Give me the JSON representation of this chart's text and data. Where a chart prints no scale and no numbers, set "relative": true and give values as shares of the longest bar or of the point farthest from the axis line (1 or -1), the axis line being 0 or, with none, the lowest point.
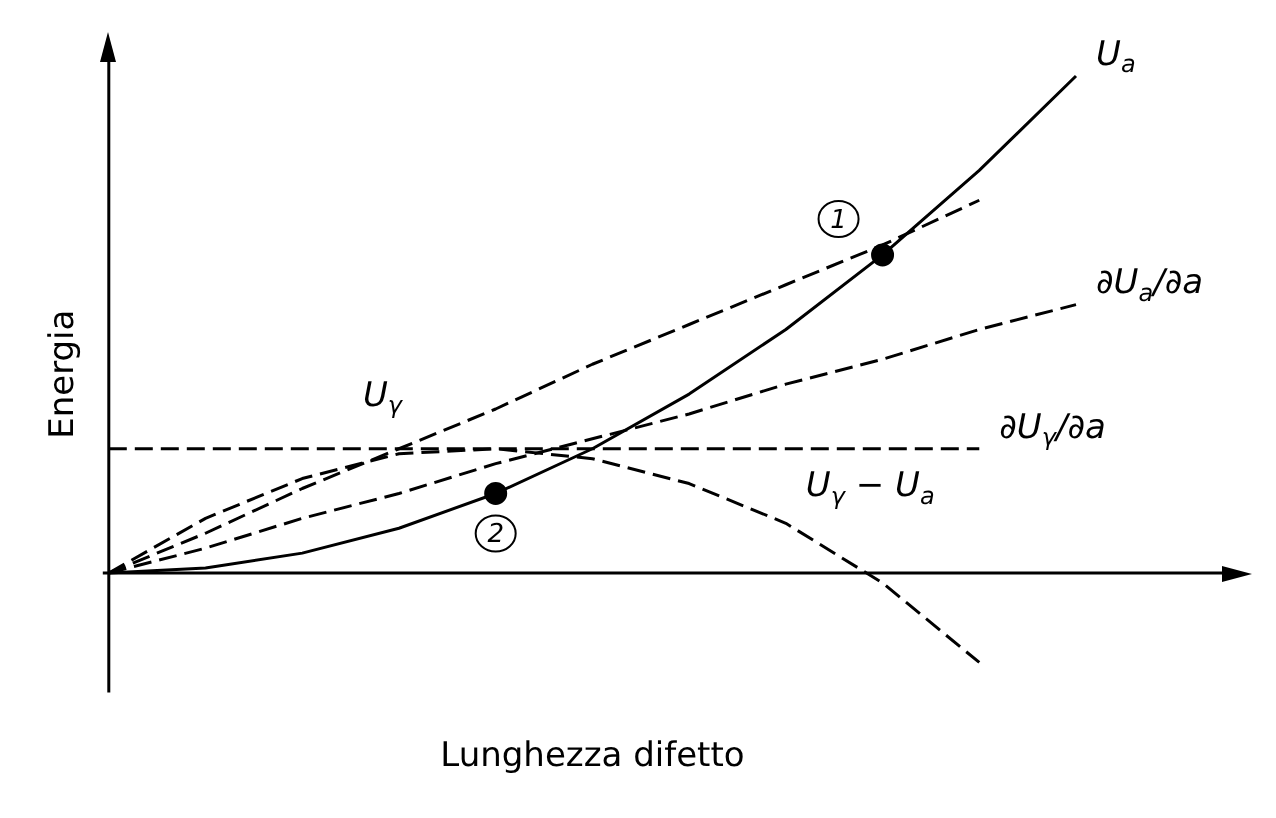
{
  "chart_data": {
    "type": "line",
    "relative": true,
    "xlabel": "Lunghezza difetto",
    "ylabel": "Energia",
    "legend": false,
    "grid": false,
    "marker": "none",
    "categories": [
      null,
      null,
      null,
      null,
      null,
      null,
      null,
      null,
      null,
      null,
      null
    ],
    "series": [
      {
        "name": "U$_{a}$",
        "color": "#000000",
        "line_style": "solid",
        "values": [
          0,
          0.01,
          0.04,
          0.09,
          0.16,
          0.25,
          0.36,
          0.49,
          0.64,
          0.81,
          1
        ]
      },
      {
        "name": "U$_{γ}$",
        "color": "#000000",
        "line_style": "dashed",
        "values": [
          0,
          0.08,
          0.17,
          0.25,
          0.33,
          0.42,
          0.5,
          0.58,
          0.66,
          0.75,
          null
        ]
      },
      {
        "name": "∂U$_{a}$/∂a",
        "color": "#000000",
        "line_style": "dashed",
        "values": [
          0,
          0.05,
          0.11,
          0.16,
          0.22,
          0.27,
          0.32,
          0.38,
          0.43,
          0.49,
          0.54
        ]
      },
      {
        "name": "∂U$_{γ}$/∂a",
        "color": "#000000",
        "line_style": "dashed",
        "values": [
          0.25,
          0.25,
          0.25,
          0.25,
          0.25,
          0.25,
          0.25,
          0.25,
          0.25,
          0.25,
          null
        ]
      },
      {
        "name": "U$_{γ}$ − U$_{a}$",
        "color": "#000000",
        "line_style": "dashed",
        "values": [
          0,
          0.11,
          0.19,
          0.24,
          0.25,
          0.23,
          0.18,
          0.1,
          -0.02,
          -0.18,
          null
        ]
      },
      {
        "marker": "circle",
        "color": "#000000",
        "values": [
          null,
          null,
          null,
          null,
          0.16,
          null,
          null,
          null,
          0.64,
          null,
          null
        ]
      }
    ],
    "annotations": [
      "2",
      "1"
    ]
  }
}
